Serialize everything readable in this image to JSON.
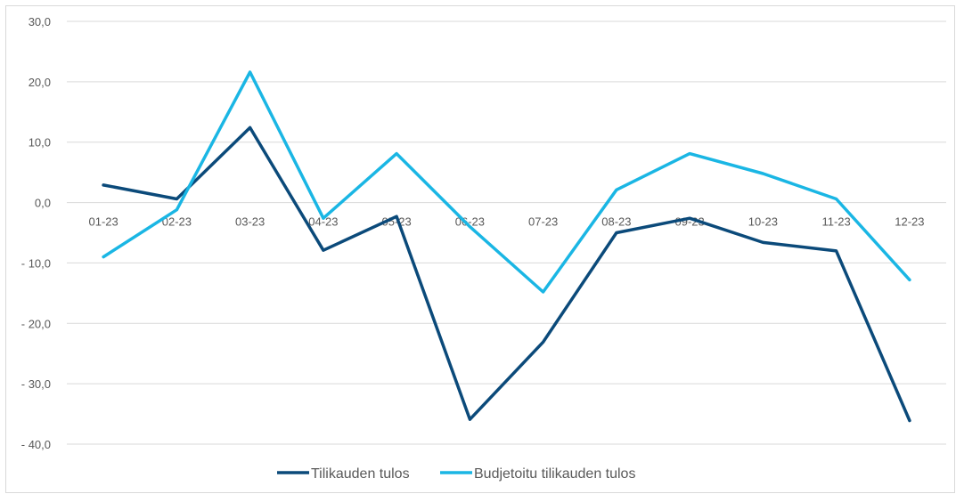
{
  "chart_data": {
    "type": "line",
    "categories": [
      "01-23",
      "02-23",
      "03-23",
      "04-23",
      "05-23",
      "06-23",
      "07-23",
      "08-23",
      "09-23",
      "10-23",
      "11-23",
      "12-23"
    ],
    "series": [
      {
        "name": "Tilikauden tulos",
        "color": "#0b4a7a",
        "values": [
          2.9,
          0.6,
          12.4,
          -7.9,
          -2.3,
          -35.9,
          -23.1,
          -5.0,
          -2.6,
          -6.6,
          -8.0,
          -36.1
        ]
      },
      {
        "name": "Budjetoitu tilikauden tulos",
        "color": "#1ab6e4",
        "values": [
          -9.0,
          -1.2,
          21.6,
          -2.6,
          8.1,
          -4.0,
          -14.8,
          2.1,
          8.1,
          4.8,
          0.6,
          -12.8
        ]
      }
    ],
    "y_tick_labels": [
      "30,0",
      "20,0",
      "10,0",
      "0,0",
      "- 10,0",
      "- 20,0",
      "- 30,0",
      "- 40,0"
    ],
    "y_tick_values": [
      30,
      20,
      10,
      0,
      -10,
      -20,
      -30,
      -40
    ],
    "ylim": [
      -40,
      30
    ],
    "grid": true,
    "legend_position": "bottom",
    "title": "",
    "xlabel": "",
    "ylabel": ""
  }
}
